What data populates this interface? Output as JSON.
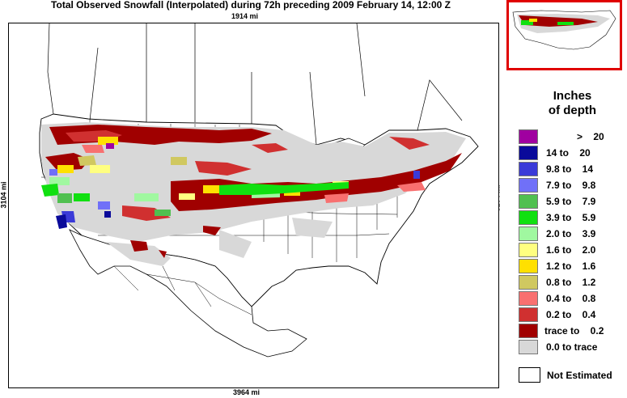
{
  "title": "Total Observed Snowfall (Interpolated) during 72h preceding 2009 February 14, 12:00 Z",
  "dimensions": {
    "top": "1914 mi",
    "bottom": "3964 mi",
    "left": "3104 mi",
    "right": "3104 mi"
  },
  "legend": {
    "title_line1": "Inches",
    "title_line2": "of depth",
    "items": [
      {
        "label": ">    20",
        "color": "#a000a0"
      },
      {
        "label": "14 to    20",
        "color": "#0a0a9a"
      },
      {
        "label": "9.8 to    14",
        "color": "#3a3ad8"
      },
      {
        "label": "7.9 to    9.8",
        "color": "#7070f8"
      },
      {
        "label": "5.9 to    7.9",
        "color": "#50c050"
      },
      {
        "label": "3.9 to    5.9",
        "color": "#10e010"
      },
      {
        "label": "2.0 to    3.9",
        "color": "#a0f8a0"
      },
      {
        "label": "1.6 to    2.0",
        "color": "#ffff80"
      },
      {
        "label": "1.2 to    1.6",
        "color": "#ffe000"
      },
      {
        "label": "0.8 to    1.2",
        "color": "#d0c860"
      },
      {
        "label": "0.4 to    0.8",
        "color": "#f87070"
      },
      {
        "label": "0.2 to    0.4",
        "color": "#d03030"
      },
      {
        "label": "trace to    0.2",
        "color": "#a00000"
      },
      {
        "label": "0.0 to trace",
        "color": "#d8d8d8"
      }
    ],
    "not_estimated": "Not Estimated"
  }
}
